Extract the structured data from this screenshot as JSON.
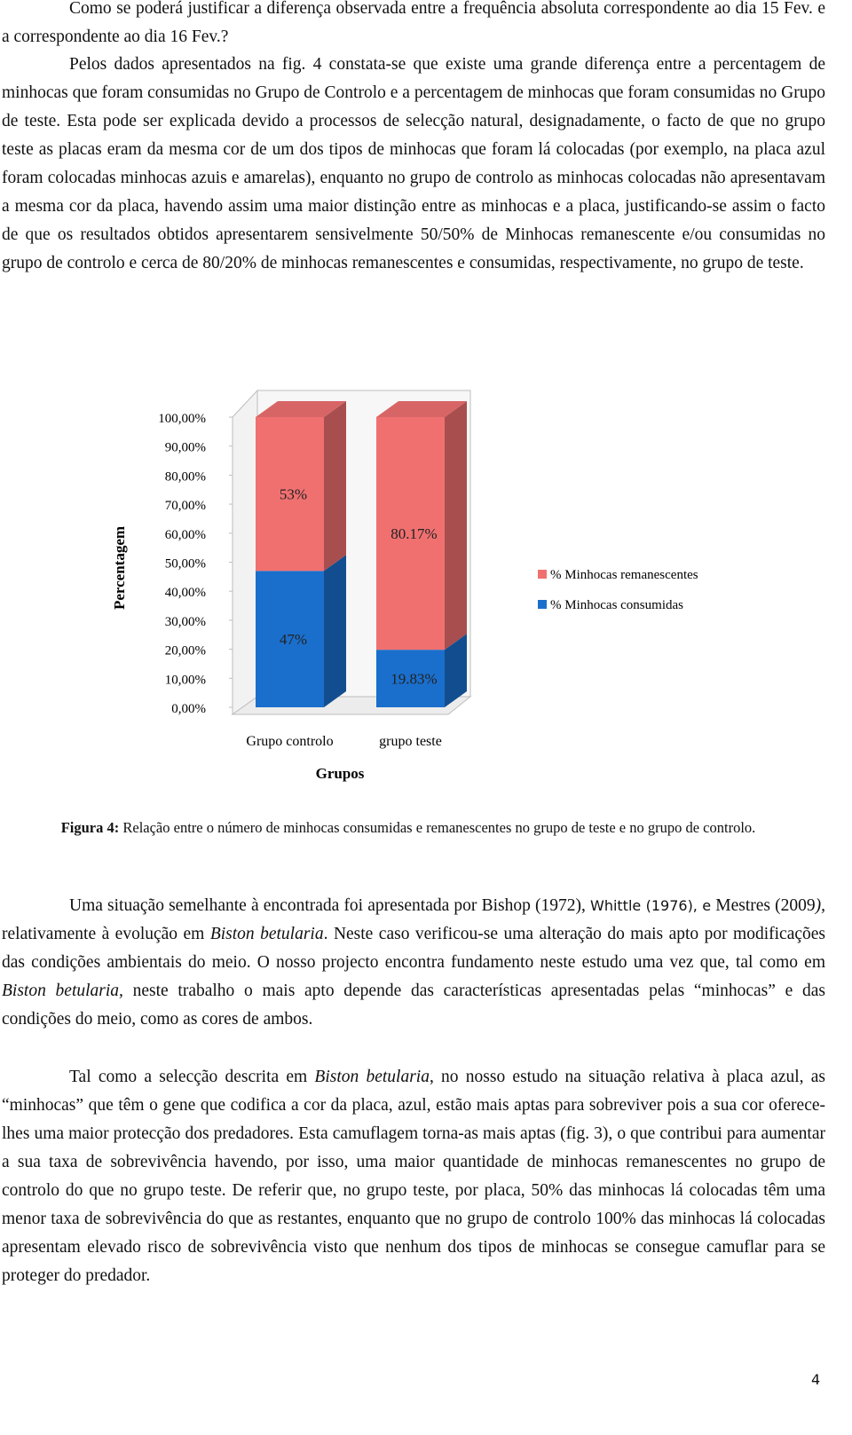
{
  "paragraphs": [
    [
      "Como se poderá justificar a diferença observada entre a frequência absoluta correspondente ao dia 15 Fev. e a correspondente ao dia 16 Fev.?"
    ],
    [
      "Pelos dados apresentados na fig. 4 constata-se que existe uma grande diferença entre a percentagem de minhocas que foram consumidas no Grupo de Controlo e a percentagem de minhocas que foram consumidas no Grupo de teste. Esta pode ser explicada devido a processos de selecção natural, designadamente, o facto de que no grupo teste as placas eram da mesma cor de um dos tipos de minhocas que foram lá colocadas (por exemplo, na placa azul foram colocadas minhocas azuis e amarelas), enquanto no grupo de controlo as minhocas colocadas não apresentavam a mesma cor da placa, havendo assim uma maior distinção entre as minhocas e a placa, justificando-se assim o facto de que os resultados obtidos apresentarem sensivelmente 50/50% de Minhocas remanescente e/ou consumidas no grupo de controlo e cerca de 80/20% de minhocas remanescentes e consumidas, respectivamente, no grupo de teste."
    ],
    [
      "Uma situação semelhante à encontrada foi apresentada por Bishop (1972), ",
      "Whittle (1976), e",
      " Mestres (2009",
      "),",
      " relativamente à evolução em ",
      "Biston betularia",
      ". Neste caso verificou-se uma alteração do mais apto por modificações das condições ambientais do meio. O nosso projecto encontra fundamento neste estudo uma vez que, tal como em ",
      "Biston betularia,",
      " neste trabalho o mais apto depende das características apresentadas pelas “minhocas” e das condições do meio, como as cores de ambos."
    ],
    [
      "Tal como a selecção descrita em ",
      "Biston betularia",
      ", no nosso estudo na situação relativa à placa azul, as “minhocas” que têm o gene que codifica a cor da placa, azul, estão mais aptas para sobreviver pois a sua cor oferece-lhes uma maior protecção dos predadores. Esta camuflagem torna-as mais aptas (fig. 3), o que contribui para aumentar a sua taxa de sobrevivência havendo, por isso, uma maior quantidade de minhocas remanescentes no grupo de controlo do que no grupo teste. De referir que, no grupo teste, por placa, 50% das minhocas lá colocadas têm uma menor taxa de sobrevivência do que as restantes, enquanto que no grupo de controlo 100% das minhocas lá colocadas apresentam elevado risco de sobrevivência visto que nenhum dos tipos de minhocas se consegue camuflar para se proteger do predador."
    ]
  ],
  "caption": {
    "label": "Figura 4:",
    "text": "Relação entre o número de minhocas consumidas e remanescentes no grupo de teste e no grupo de controlo."
  },
  "page_number": "4",
  "chart_data": {
    "type": "bar",
    "stacked": true,
    "x_label": "Grupos",
    "y_label": "Percentagem",
    "categories": [
      "Grupo controlo",
      "grupo teste"
    ],
    "series": [
      {
        "name": "% Minhocas consumidas",
        "color": "#1a6fcc",
        "values": [
          47,
          19.83
        ],
        "value_labels": [
          "47%",
          "19.83%"
        ]
      },
      {
        "name": "% Minhocas remanescentes",
        "color": "#f07070",
        "values": [
          53,
          80.17
        ],
        "value_labels": [
          "53%",
          "80.17%"
        ]
      }
    ],
    "ylim": [
      0,
      100
    ],
    "yticks": [
      {
        "value": 0,
        "label": "0,00%"
      },
      {
        "value": 10,
        "label": "10,00%"
      },
      {
        "value": 20,
        "label": "20,00%"
      },
      {
        "value": 30,
        "label": "30,00%"
      },
      {
        "value": 40,
        "label": "40,00%"
      },
      {
        "value": 50,
        "label": "50,00%"
      },
      {
        "value": 60,
        "label": "60,00%"
      },
      {
        "value": 70,
        "label": "70,00%"
      },
      {
        "value": 80,
        "label": "80,00%"
      },
      {
        "value": 90,
        "label": "90,00%"
      },
      {
        "value": 100,
        "label": "100,00%"
      }
    ]
  }
}
